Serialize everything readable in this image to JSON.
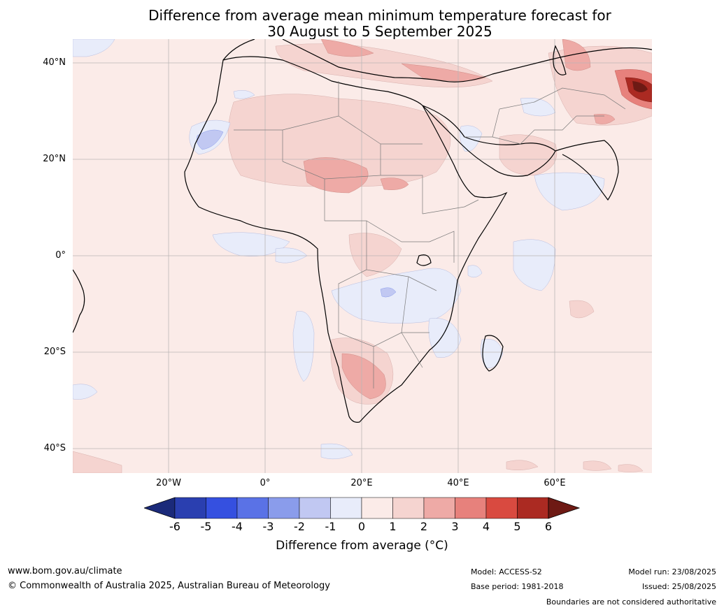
{
  "title_line1": "Difference from average mean minimum temperature forecast for",
  "title_line2": "30 August to 5 September 2025",
  "lat_labels": [
    "40°N",
    "20°N",
    "0°",
    "20°S",
    "40°S"
  ],
  "lon_labels": [
    "20°W",
    "0°",
    "20°E",
    "40°E",
    "60°E"
  ],
  "colorbar": {
    "ticks": [
      "-6",
      "-5",
      "-4",
      "-3",
      "-2",
      "-1",
      "0",
      "1",
      "2",
      "3",
      "4",
      "5",
      "6"
    ],
    "colors": [
      "#1b2a7a",
      "#2a3fb0",
      "#3550e0",
      "#5a72e6",
      "#8a9ceb",
      "#c1c8f2",
      "#e8ecfa",
      "#fbebe8",
      "#f5d4d0",
      "#eeaaa6",
      "#e7817c",
      "#d94a40",
      "#ab2a22",
      "#6e1a14"
    ],
    "label": "Difference from average (°C)"
  },
  "map": {
    "background_color": "#fbebe8",
    "land_color": "#fbebe8",
    "ocean_color": "#fbebe8",
    "gridlines": true,
    "region": "Africa and surrounding regions",
    "highlights": {
      "warm_max": "northern Pakistan/Tibet (+5 to +6)",
      "warm": [
        "Mediterranean/Turkey",
        "Sahel/Chad",
        "Namibia/South Africa",
        "Arabian Sea"
      ],
      "cool": [
        "Western Sahara",
        "Gulf of Guinea",
        "Central Africa",
        "Mozambique",
        "Madagascar"
      ]
    }
  },
  "footer": {
    "website": "www.bom.gov.au/climate",
    "copyright": "© Commonwealth of Australia 2025, Australian Bureau of Meteorology",
    "model": "Model: ACCESS-S2",
    "base_period": "Base period: 1981-2018",
    "model_run": "Model run: 23/08/2025",
    "issued": "Issued: 25/08/2025",
    "disclaimer": "Boundaries are not considered authoritative"
  }
}
